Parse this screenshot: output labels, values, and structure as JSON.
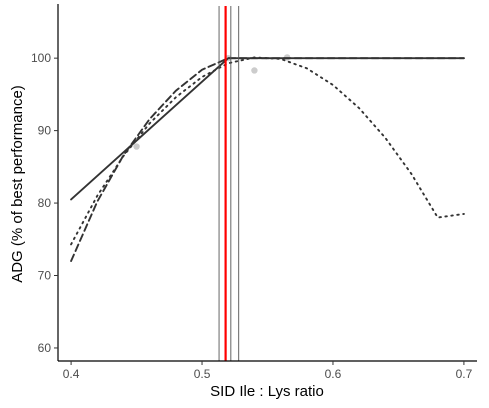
{
  "chart_data": {
    "type": "line",
    "title": "",
    "xlabel": "SID Ile : Lys ratio",
    "ylabel": "ADG (% of best performance)",
    "xlim": [
      0.39,
      0.71
    ],
    "ylim": [
      58.2,
      107.2
    ],
    "x_ticks": [
      0.4,
      0.5,
      0.6,
      0.7
    ],
    "x_tick_labels": [
      "0.4",
      "0.5",
      "0.6",
      "0.7"
    ],
    "y_ticks": [
      60,
      70,
      80,
      90,
      100
    ],
    "y_tick_labels": [
      "60",
      "70",
      "80",
      "90",
      "100"
    ],
    "grid": false,
    "points": [
      {
        "x": 0.45,
        "y": 87.8
      },
      {
        "x": 0.52,
        "y": 100.0
      },
      {
        "x": 0.54,
        "y": 98.3
      },
      {
        "x": 0.565,
        "y": 100.1
      }
    ],
    "series": [
      {
        "style": "solid",
        "color": "#333333",
        "x": [
          0.4,
          0.52,
          0.7
        ],
        "y": [
          80.5,
          100.0,
          100.0
        ]
      },
      {
        "style": "dashed",
        "color": "#333333",
        "x": [
          0.4,
          0.42,
          0.44,
          0.46,
          0.48,
          0.5,
          0.52,
          0.7
        ],
        "y": [
          72.0,
          80.2,
          86.6,
          91.6,
          95.5,
          98.4,
          100.0,
          100.0
        ]
      },
      {
        "style": "dotted",
        "color": "#333333",
        "x": [
          0.4,
          0.42,
          0.44,
          0.46,
          0.48,
          0.5,
          0.52,
          0.54,
          0.56,
          0.58,
          0.6,
          0.62,
          0.64,
          0.66,
          0.68,
          0.7
        ],
        "y": [
          74.3,
          81.0,
          86.5,
          91.0,
          94.6,
          97.4,
          99.3,
          100.1,
          99.9,
          98.6,
          96.3,
          93.1,
          89.0,
          84.0,
          78.0,
          78.5
        ]
      }
    ],
    "reference_lines": [
      {
        "x": 0.518,
        "color": "#ff0000",
        "role": "breakpoint"
      },
      {
        "x": 0.513,
        "color": "#555555",
        "role": "ci"
      },
      {
        "x": 0.522,
        "color": "#555555",
        "role": "ci"
      },
      {
        "x": 0.528,
        "color": "#555555",
        "role": "ci"
      }
    ]
  }
}
